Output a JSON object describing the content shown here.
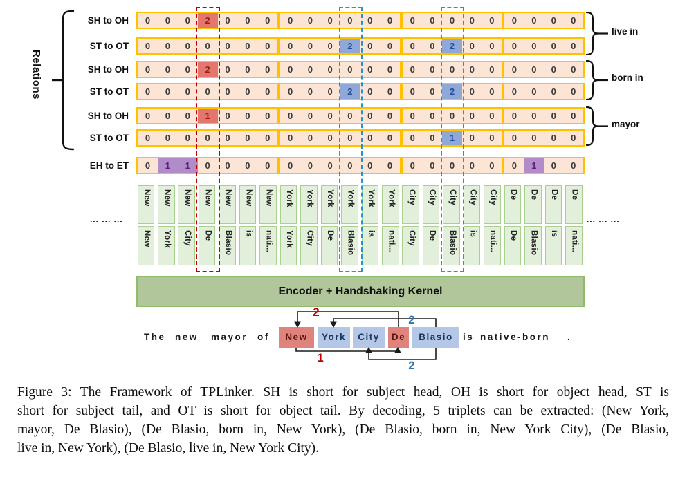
{
  "figure": {
    "relations_axis_label": "Relations",
    "token_groups": [
      7,
      6,
      5,
      4
    ],
    "rows": [
      {
        "label": "SH to OH",
        "relation": "live in",
        "cells": [
          "0",
          "0",
          "0",
          "2",
          "0",
          "0",
          "0",
          "0",
          "0",
          "0",
          "0",
          "0",
          "0",
          "0",
          "0",
          "0",
          "0",
          "0",
          "0",
          "0",
          "0",
          "0"
        ],
        "marks": {
          "3": "red"
        }
      },
      {
        "label": "ST to OT",
        "relation": "live in",
        "cells": [
          "0",
          "0",
          "0",
          "0",
          "0",
          "0",
          "0",
          "0",
          "0",
          "0",
          "2",
          "0",
          "0",
          "0",
          "0",
          "2",
          "0",
          "0",
          "0",
          "0",
          "0",
          "0"
        ],
        "marks": {
          "10": "blue",
          "15": "blue"
        }
      },
      {
        "label": "SH to OH",
        "relation": "born in",
        "cells": [
          "0",
          "0",
          "0",
          "2",
          "0",
          "0",
          "0",
          "0",
          "0",
          "0",
          "0",
          "0",
          "0",
          "0",
          "0",
          "0",
          "0",
          "0",
          "0",
          "0",
          "0",
          "0"
        ],
        "marks": {
          "3": "red"
        }
      },
      {
        "label": "ST to OT",
        "relation": "born in",
        "cells": [
          "0",
          "0",
          "0",
          "0",
          "0",
          "0",
          "0",
          "0",
          "0",
          "0",
          "2",
          "0",
          "0",
          "0",
          "0",
          "2",
          "0",
          "0",
          "0",
          "0",
          "0",
          "0"
        ],
        "marks": {
          "10": "blue",
          "15": "blue"
        }
      },
      {
        "label": "SH to OH",
        "relation": "mayor",
        "cells": [
          "0",
          "0",
          "0",
          "1",
          "0",
          "0",
          "0",
          "0",
          "0",
          "0",
          "0",
          "0",
          "0",
          "0",
          "0",
          "0",
          "0",
          "0",
          "0",
          "0",
          "0",
          "0"
        ],
        "marks": {
          "3": "red"
        }
      },
      {
        "label": "ST to OT",
        "relation": "mayor",
        "cells": [
          "0",
          "0",
          "0",
          "0",
          "0",
          "0",
          "0",
          "0",
          "0",
          "0",
          "0",
          "0",
          "0",
          "0",
          "0",
          "1",
          "0",
          "0",
          "0",
          "0",
          "0",
          "0"
        ],
        "marks": {
          "15": "blue"
        }
      },
      {
        "label": "EH to ET",
        "relation": "",
        "cells": [
          "0",
          "1",
          "1",
          "0",
          "0",
          "0",
          "0",
          "0",
          "0",
          "0",
          "0",
          "0",
          "0",
          "0",
          "0",
          "0",
          "0",
          "0",
          "0",
          "1",
          "0",
          "0"
        ],
        "marks": {
          "1": "purple",
          "2": "purple",
          "19": "purple"
        }
      }
    ],
    "relation_braces": [
      {
        "label": "live in"
      },
      {
        "label": "born in"
      },
      {
        "label": "mayor"
      }
    ],
    "token_pairs": [
      {
        "top": "New",
        "bottom": "New"
      },
      {
        "top": "New",
        "bottom": "York"
      },
      {
        "top": "New",
        "bottom": "City"
      },
      {
        "top": "New",
        "bottom": "De"
      },
      {
        "top": "New",
        "bottom": "Blasio"
      },
      {
        "top": "New",
        "bottom": "is"
      },
      {
        "top": "New",
        "bottom": "nati..."
      },
      {
        "top": "York",
        "bottom": "York"
      },
      {
        "top": "York",
        "bottom": "City"
      },
      {
        "top": "York",
        "bottom": "De"
      },
      {
        "top": "York",
        "bottom": "Blasio"
      },
      {
        "top": "York",
        "bottom": "is"
      },
      {
        "top": "York",
        "bottom": "nati..."
      },
      {
        "top": "City",
        "bottom": "City"
      },
      {
        "top": "City",
        "bottom": "De"
      },
      {
        "top": "City",
        "bottom": "Blasio"
      },
      {
        "top": "City",
        "bottom": "is"
      },
      {
        "top": "City",
        "bottom": "nati..."
      },
      {
        "top": "De",
        "bottom": "De"
      },
      {
        "top": "De",
        "bottom": "Blasio"
      },
      {
        "top": "De",
        "bottom": "is"
      },
      {
        "top": "De",
        "bottom": "nati..."
      }
    ],
    "dashed_columns": [
      {
        "index": 3,
        "color": "red"
      },
      {
        "index": 10,
        "color": "blue"
      },
      {
        "index": 15,
        "color": "blue"
      }
    ],
    "ellipsis_left": "... ... ...",
    "ellipsis_right": "... ... ...",
    "encoder_label": "Encoder + Handshaking Kernel",
    "sentence": {
      "tokens": [
        {
          "text": "The"
        },
        {
          "text": "new"
        },
        {
          "text": "mayor"
        },
        {
          "text": "of"
        },
        {
          "text": "New",
          "highlight": "red"
        },
        {
          "text": "York",
          "highlight": "blue"
        },
        {
          "text": "City",
          "highlight": "blue"
        },
        {
          "text": "De",
          "highlight": "red"
        },
        {
          "text": "Blasio",
          "highlight": "blue"
        },
        {
          "text": "is"
        },
        {
          "text": "native-born"
        },
        {
          "text": "."
        }
      ],
      "arrows": [
        {
          "label": "2",
          "color": "red",
          "position": "top",
          "from": "De",
          "to": "New"
        },
        {
          "label": "2",
          "color": "blue",
          "position": "top",
          "from": "Blasio",
          "to": "York"
        },
        {
          "label": "1",
          "color": "red",
          "position": "bottom",
          "from": "New",
          "to": "De"
        },
        {
          "label": "2",
          "color": "blue",
          "position": "bottom",
          "from": "Blasio",
          "to": "City"
        }
      ]
    },
    "colors": {
      "cell_border": "#ffc000",
      "cell_bg": "#fce5d5",
      "red_mark_bg": "#e5766d",
      "red_mark_text": "#9c1f15",
      "blue_mark_bg": "#8fa8d8",
      "blue_mark_text": "#1f4e9c",
      "purple_mark_bg": "#b18cc9",
      "purple_mark_text": "#5f1e82",
      "token_bg": "#e2efda",
      "token_border": "#a9d18e",
      "dashed_red": "#c00000",
      "dashed_blue": "#2493d1",
      "encoder_bg": "#b2c69b",
      "encoder_border": "#8ebc6a",
      "sentence_red_bg": "#df837c",
      "sentence_blue_bg": "#b4c7e7",
      "arrow_label_red": "#c00000",
      "arrow_label_blue": "#2e75b6"
    }
  },
  "caption": {
    "lines": [
      "Figure 3: The Framework of TPLinker. SH is short for subject head, OH is short for object head, ST is",
      "short for subject tail, and OT is short for object tail. By decoding, 5 triplets can be extracted: (New York,",
      "mayor, De Blasio), (De Blasio, born in, New York), (De Blasio, born in, New York City), (De Blasio,",
      "live in, New York), (De Blasio, live in, New York City)."
    ]
  }
}
